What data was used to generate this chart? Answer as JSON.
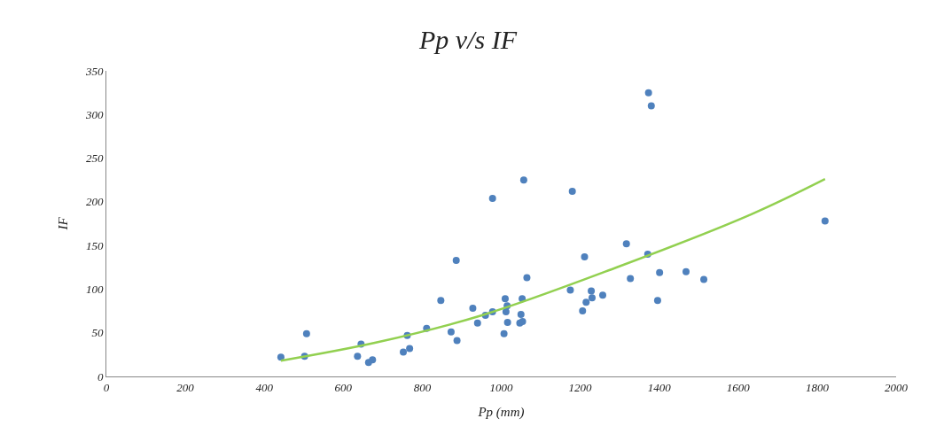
{
  "chart_data": {
    "type": "scatter",
    "title": "Pp v/s IF",
    "xlabel": "Pp (mm)",
    "ylabel": "IF",
    "xlim": [
      0,
      2000
    ],
    "xticks": [
      0,
      200,
      400,
      600,
      800,
      1000,
      1200,
      1400,
      1600,
      1800,
      2000
    ],
    "ylim": [
      0,
      350
    ],
    "yticks": [
      0,
      50,
      100,
      150,
      200,
      250,
      300,
      350
    ],
    "marker": "circle",
    "series": [
      {
        "color": "#4f81bd",
        "x": [
          442,
          507,
          502,
          645,
          636,
          664,
          674,
          752,
          768,
          762,
          811,
          847,
          886,
          873,
          888,
          928,
          940,
          960,
          978,
          1010,
          1015,
          1012,
          1016,
          1007,
          1053,
          1050,
          1047,
          1054,
          1065,
          978,
          1057,
          1180,
          1373,
          1380,
          1317,
          1371,
          1211,
          1175,
          1327,
          1401,
          1468,
          1513,
          1228,
          1230,
          1257,
          1215,
          1206,
          1396,
          1820
        ],
        "values": [
          22,
          49,
          23,
          37,
          23,
          16,
          19,
          28,
          32,
          47,
          55,
          87,
          133,
          51,
          41,
          78,
          61,
          70,
          74,
          89,
          81,
          74,
          62,
          49,
          89,
          71,
          61,
          63,
          113,
          204,
          225,
          212,
          325,
          310,
          152,
          140,
          137,
          99,
          112,
          119,
          120,
          111,
          98,
          90,
          93,
          85,
          75,
          87,
          178
        ]
      },
      {
        "type": "line",
        "color": "#92d050",
        "marker": "none",
        "x": [
          442,
          685,
          951,
          1293,
          1635,
          1820
        ],
        "values": [
          18,
          39,
          70,
          125,
          186,
          226
        ]
      }
    ]
  }
}
